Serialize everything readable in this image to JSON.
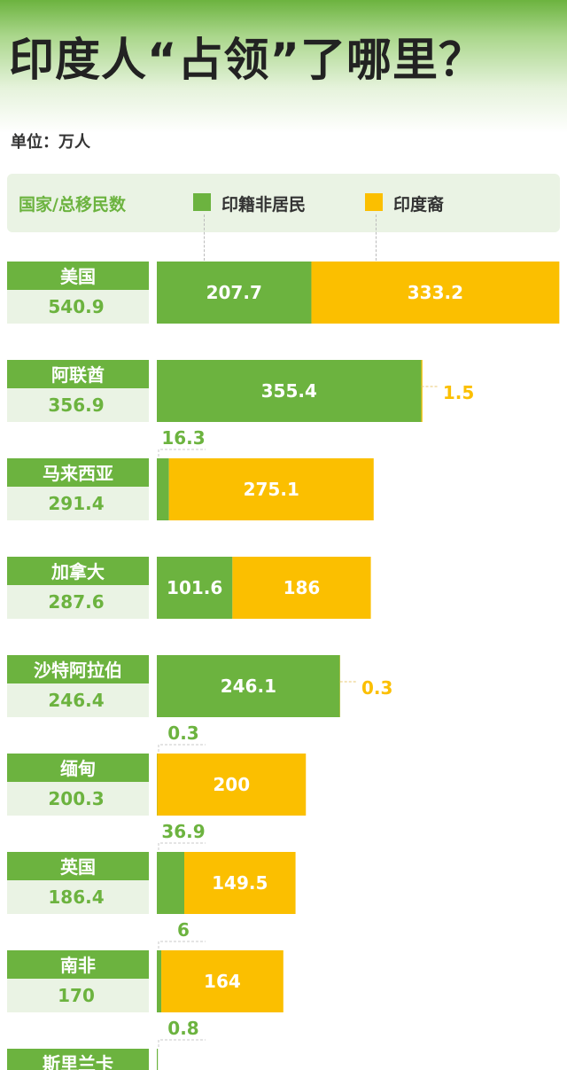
{
  "header": {
    "title": "印度人“占领”了哪里？",
    "unit": "单位：万人"
  },
  "legend": {
    "label": "国家/总移民数",
    "items": [
      {
        "name": "印籍非居民",
        "color": "#6cb33f"
      },
      {
        "name": "印度裔",
        "color": "#fbbf00"
      }
    ]
  },
  "colors": {
    "green": "#6cb33f",
    "yellow": "#fbbf00",
    "label_bg_light": "#eaf3e4"
  },
  "chart_data": {
    "type": "bar",
    "stacked": true,
    "orientation": "horizontal",
    "title": "印度人“占领”了哪里？",
    "unit": "万人",
    "categories": [
      "美国",
      "阿联酋",
      "马来西亚",
      "加拿大",
      "沙特阿拉伯",
      "缅甸",
      "英国",
      "南非",
      "斯里兰卡"
    ],
    "totals": [
      "540.9",
      "356.9",
      "291.4",
      "287.6",
      "246.4",
      "200.3",
      "186.4",
      "170",
      ""
    ],
    "series": [
      {
        "name": "印籍非居民",
        "values": [
          207.7,
          355.4,
          16.3,
          101.6,
          246.1,
          0.3,
          36.9,
          6,
          0.8
        ]
      },
      {
        "name": "印度裔",
        "values": [
          333.2,
          1.5,
          275.1,
          186,
          0.3,
          200,
          149.5,
          164,
          null
        ]
      }
    ],
    "labels": {
      "green": [
        "207.7",
        "355.4",
        "16.3",
        "101.6",
        "246.1",
        "0.3",
        "36.9",
        "6",
        "0.8"
      ],
      "yellow": [
        "333.2",
        "1.5",
        "275.1",
        "186",
        "0.3",
        "200",
        "149.5",
        "164",
        ""
      ]
    },
    "legend_position": "top"
  }
}
